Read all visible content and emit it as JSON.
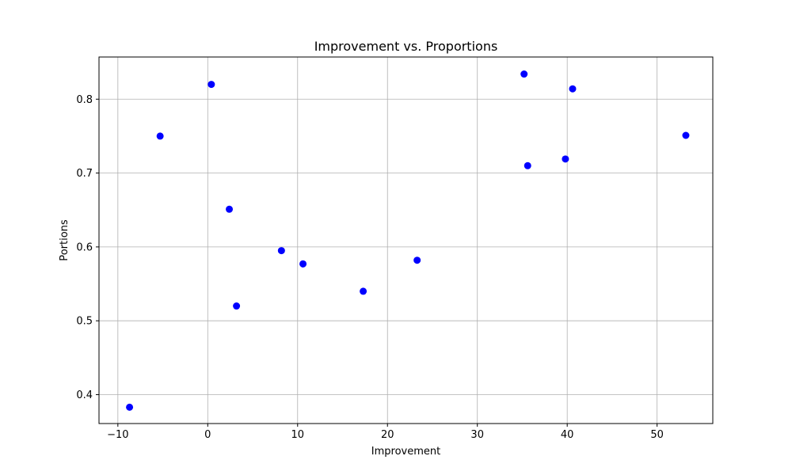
{
  "chart_data": {
    "type": "scatter",
    "title": "Improvement vs. Proportions",
    "xlabel": "Improvement",
    "ylabel": "Portions",
    "xlim": [
      -12.1,
      56.2
    ],
    "ylim": [
      0.3609,
      0.8571
    ],
    "xticks": [
      -10,
      0,
      10,
      20,
      30,
      40,
      50
    ],
    "yticks": [
      0.4,
      0.5,
      0.6,
      0.7,
      0.8
    ],
    "grid": true,
    "legend": "none",
    "marker_color": "#0000ff",
    "points": [
      {
        "x": -8.7,
        "y": 0.383
      },
      {
        "x": -5.3,
        "y": 0.75
      },
      {
        "x": 0.4,
        "y": 0.82
      },
      {
        "x": 2.4,
        "y": 0.651
      },
      {
        "x": 3.2,
        "y": 0.52
      },
      {
        "x": 8.2,
        "y": 0.595
      },
      {
        "x": 10.6,
        "y": 0.577
      },
      {
        "x": 17.3,
        "y": 0.54
      },
      {
        "x": 23.3,
        "y": 0.582
      },
      {
        "x": 35.2,
        "y": 0.834
      },
      {
        "x": 35.6,
        "y": 0.71
      },
      {
        "x": 39.8,
        "y": 0.719
      },
      {
        "x": 40.6,
        "y": 0.814
      },
      {
        "x": 53.2,
        "y": 0.751
      }
    ]
  }
}
